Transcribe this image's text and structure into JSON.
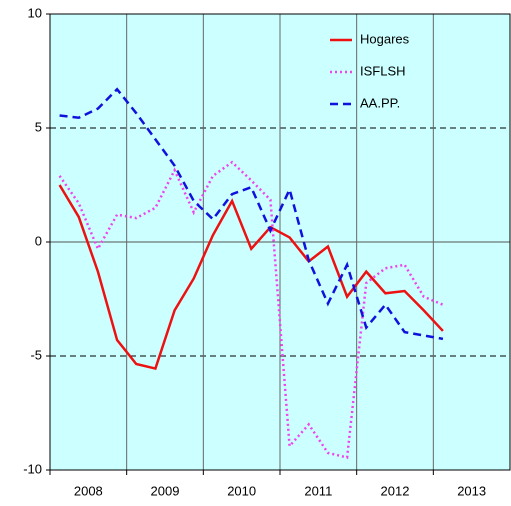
{
  "chart_data": {
    "type": "line",
    "x": [
      2008.125,
      2008.375,
      2008.625,
      2008.875,
      2009.125,
      2009.375,
      2009.625,
      2009.875,
      2010.125,
      2010.375,
      2010.625,
      2010.875,
      2011.125,
      2011.375,
      2011.625,
      2011.875,
      2012.125,
      2012.375,
      2012.625,
      2012.875,
      2013.125
    ],
    "xlim": [
      2008,
      2014
    ],
    "xticks": [
      2008,
      2009,
      2010,
      2011,
      2012,
      2013
    ],
    "ylim": [
      -10,
      10
    ],
    "yticks": [
      -10,
      -5,
      0,
      5,
      10
    ],
    "grid": true,
    "legend": "upper right",
    "background": "#ccffff",
    "series": [
      {
        "name": "Hogares",
        "color": "#ee1111",
        "style": "solid",
        "values": [
          2.5,
          1.1,
          -1.3,
          -4.3,
          -5.35,
          -5.55,
          -3.0,
          -1.6,
          0.3,
          1.8,
          -0.3,
          0.65,
          0.2,
          -0.85,
          -0.2,
          -2.4,
          -1.3,
          -2.25,
          -2.15,
          -3.0,
          -3.9
        ]
      },
      {
        "name": "ISFLSH",
        "color": "#ee44ee",
        "style": "dotted",
        "values": [
          2.9,
          1.7,
          -0.3,
          1.2,
          1.05,
          1.5,
          3.15,
          1.3,
          2.9,
          3.5,
          2.7,
          1.85,
          -8.95,
          -8.0,
          -9.25,
          -9.45,
          -1.8,
          -1.15,
          -1.0,
          -2.4,
          -2.75
        ]
      },
      {
        "name": "AA.PP.",
        "color": "#1111dd",
        "style": "dashed",
        "values": [
          5.55,
          5.45,
          5.85,
          6.7,
          5.65,
          4.5,
          3.35,
          1.8,
          1.0,
          2.1,
          2.4,
          0.5,
          2.3,
          -0.8,
          -2.7,
          -1.0,
          -3.75,
          -2.75,
          -3.95,
          -4.1,
          -4.25
        ]
      }
    ]
  }
}
